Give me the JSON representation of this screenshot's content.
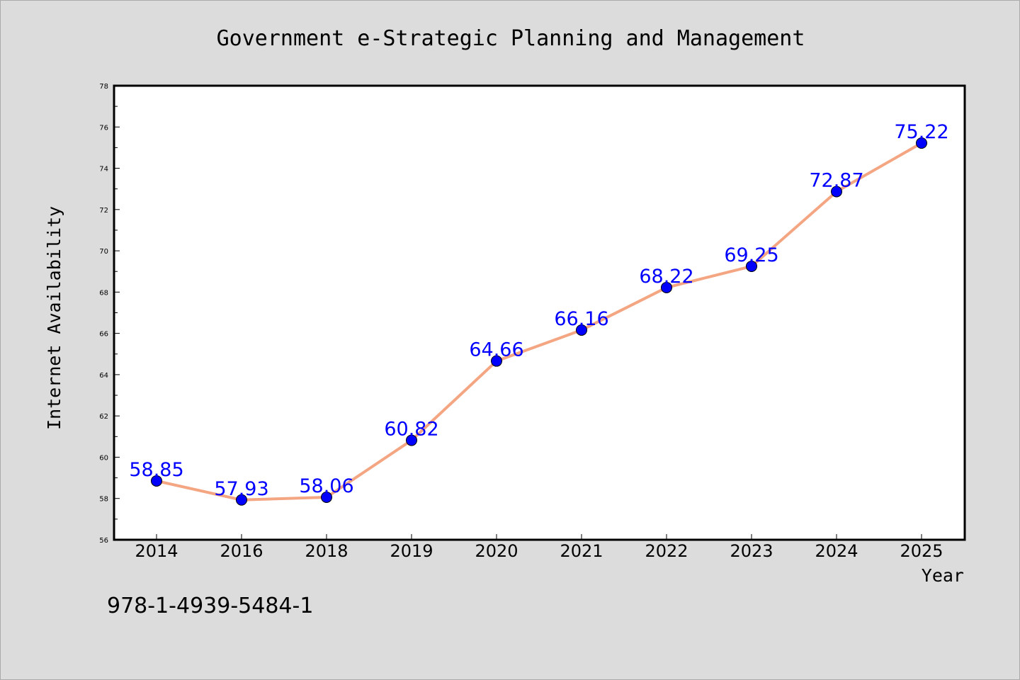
{
  "chart_data": {
    "type": "line",
    "title": "Government e-Strategic Planning and Management",
    "xlabel": "Year",
    "ylabel": "Internet Availability",
    "categories": [
      "2014",
      "2016",
      "2018",
      "2019",
      "2020",
      "2021",
      "2022",
      "2023",
      "2024",
      "2025"
    ],
    "series": [
      {
        "values": [
          58.85,
          57.93,
          58.06,
          60.82,
          64.66,
          66.16,
          68.22,
          69.25,
          72.87,
          75.22
        ],
        "labels": [
          "58.85",
          "57.93",
          "58.06",
          "60.82",
          "64.66",
          "66.16",
          "68.22",
          "69.25",
          "72.87",
          "75.22"
        ]
      }
    ],
    "ylim": [
      56,
      78
    ],
    "yticks": [
      "56",
      "58",
      "60",
      "62",
      "64",
      "66",
      "68",
      "70",
      "72",
      "74",
      "76",
      "78"
    ],
    "grid": false,
    "colors": {
      "line": "#f4a582",
      "marker": "#0000ff",
      "label": "#0000ff",
      "background": "#dcdcdc",
      "plot_background": "#ffffff"
    }
  },
  "footer": {
    "isbn": "978-1-4939-5484-1"
  }
}
